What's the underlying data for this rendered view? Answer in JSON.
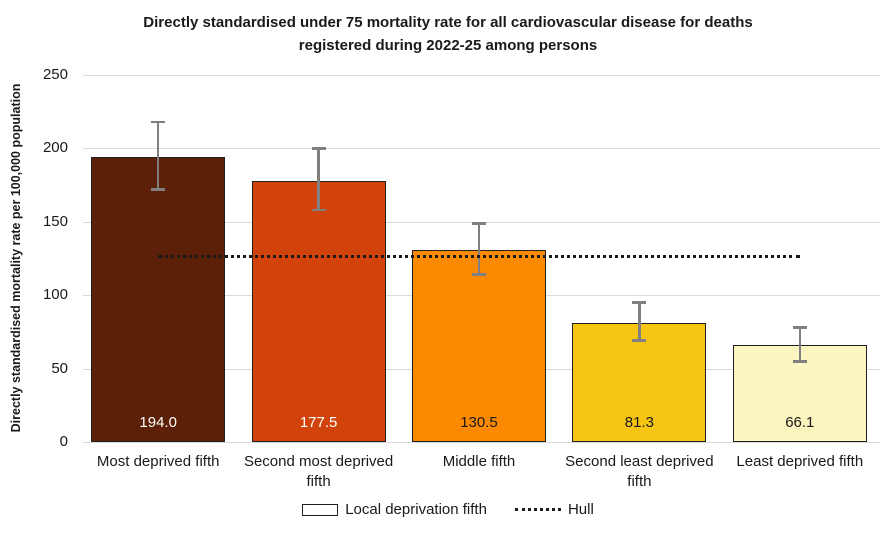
{
  "header": {
    "line1": "Directly standardised under 75 mortality rate for all cardiovascular disease for deaths",
    "line2": "registered during 2022-25 among persons"
  },
  "chart_data": {
    "type": "bar",
    "title": "Directly standardised under 75 mortality rate for all cardiovascular disease for deaths registered during 2022-25 among persons",
    "xlabel": "",
    "ylabel": "Directly standardised mortality rate per 100,000 population",
    "ylim": [
      0,
      250
    ],
    "yticks": [
      0,
      50,
      100,
      150,
      200,
      250
    ],
    "grid": true,
    "categories": [
      "Most deprived fifth",
      "Second most deprived fifth",
      "Middle fifth",
      "Second least deprived fifth",
      "Least deprived fifth"
    ],
    "values": [
      194.0,
      177.5,
      130.5,
      81.3,
      66.1
    ],
    "value_labels": [
      "194.0",
      "177.5",
      "130.5",
      "81.3",
      "66.1"
    ],
    "bar_colors": [
      "#5B2007",
      "#D2430B",
      "#FC8A00",
      "#F6C513",
      "#FBF5BF"
    ],
    "value_label_colors": [
      "#FFFFFF",
      "#FFFFFF",
      "#1A1A1A",
      "#1A1A1A",
      "#1A1A1A"
    ],
    "error_bars": [
      {
        "low": 172,
        "high": 218
      },
      {
        "low": 158,
        "high": 200
      },
      {
        "low": 114,
        "high": 149
      },
      {
        "low": 69,
        "high": 95
      },
      {
        "low": 55,
        "high": 78
      }
    ],
    "reference_line": {
      "name": "Hull",
      "value": 126,
      "style": "dotted",
      "color": "#1A1A1A"
    },
    "legend": [
      {
        "label": "Local deprivation fifth",
        "swatch": "hollow-bar"
      },
      {
        "label": "Hull",
        "swatch": "dotted-line"
      }
    ],
    "legend_position": "bottom",
    "bar_border_color": "#1F1F1F",
    "error_bar_color": "#808080",
    "gridline_color": "#D9D9D9"
  }
}
